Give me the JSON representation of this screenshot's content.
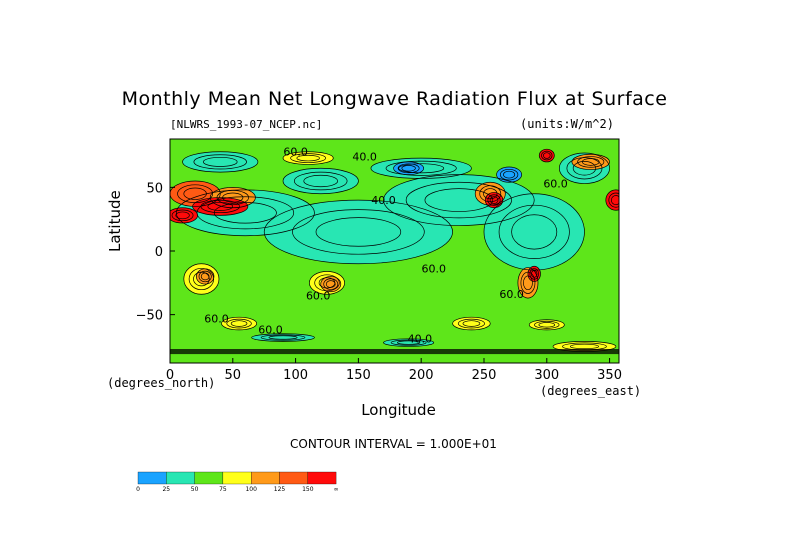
{
  "chart_data": {
    "type": "heatmap",
    "title": "Monthly Mean Net Longwave Radiation Flux at Surface",
    "subtitle_left": "[NLWRS_1993-07_NCEP.nc]",
    "subtitle_right": "(units:W/m^2)",
    "xlabel": "Longitude",
    "ylabel": "Latitude",
    "x_unit": "(degrees_east)",
    "y_unit": "(degrees_north)",
    "xlim": [
      0,
      357.5
    ],
    "ylim": [
      -88,
      88
    ],
    "x_ticks": [
      "0",
      "50",
      "100",
      "150",
      "200",
      "250",
      "300",
      "350"
    ],
    "x_tick_values": [
      0,
      50,
      100,
      150,
      200,
      250,
      300,
      350
    ],
    "y_ticks": [
      "50",
      "0",
      "−50"
    ],
    "y_tick_values": [
      50,
      0,
      -50
    ],
    "contour_interval": "CONTOUR INTERVAL = 1.000E+01",
    "contour_labels": [
      {
        "text": "60.0",
        "lon": 100,
        "lat": 75
      },
      {
        "text": "40.0",
        "lon": 155,
        "lat": 71
      },
      {
        "text": "40.0",
        "lon": 170,
        "lat": 37
      },
      {
        "text": "60.0",
        "lon": 307,
        "lat": 50
      },
      {
        "text": "60.0",
        "lon": 210,
        "lat": -17
      },
      {
        "text": "60.0",
        "lon": 118,
        "lat": -38
      },
      {
        "text": "60.0",
        "lon": 272,
        "lat": -37
      },
      {
        "text": "60.0",
        "lon": 37,
        "lat": -56
      },
      {
        "text": "60.0",
        "lon": 80,
        "lat": -65
      },
      {
        "text": "40.0",
        "lon": 199,
        "lat": -72
      }
    ],
    "colorbar": {
      "colors": [
        "#1aa3ff",
        "#28e6b3",
        "#5ee61a",
        "#ffff1a",
        "#ff9a1a",
        "#ff5a14",
        "#ff0a0a"
      ],
      "labels": [
        "0",
        "25",
        "50",
        "75",
        "100",
        "125",
        "150",
        "∞"
      ]
    }
  }
}
